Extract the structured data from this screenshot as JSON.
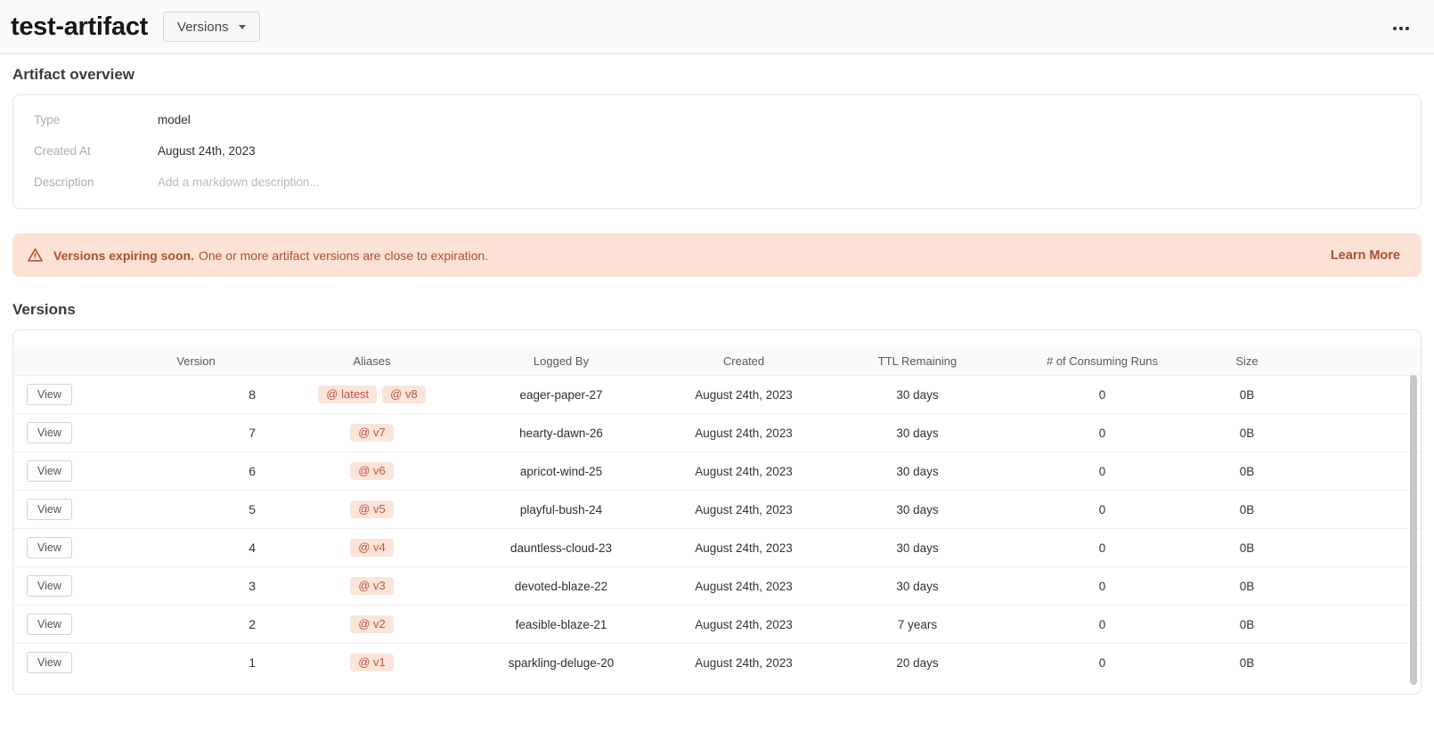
{
  "header": {
    "title": "test-artifact",
    "versions_button": "Versions"
  },
  "overview": {
    "heading": "Artifact overview",
    "type_label": "Type",
    "type_value": "model",
    "created_label": "Created At",
    "created_value": "August 24th, 2023",
    "description_label": "Description",
    "description_placeholder": "Add a markdown description..."
  },
  "banner": {
    "title": "Versions expiring soon.",
    "message": "One or more artifact versions are close to expiration.",
    "action_label": "Learn More"
  },
  "versions_section": {
    "heading": "Versions"
  },
  "table": {
    "columns": [
      "Version",
      "Aliases",
      "Logged By",
      "Created",
      "TTL Remaining",
      "# of Consuming Runs",
      "Size"
    ],
    "view_button_label": "View",
    "alias_prefix": "@",
    "rows": [
      {
        "version": "8",
        "aliases": [
          "latest",
          "v8"
        ],
        "logged_by": "eager-paper-27",
        "created": "August 24th, 2023",
        "ttl_remaining": "30 days",
        "consuming_runs": "0",
        "size": "0B"
      },
      {
        "version": "7",
        "aliases": [
          "v7"
        ],
        "logged_by": "hearty-dawn-26",
        "created": "August 24th, 2023",
        "ttl_remaining": "30 days",
        "consuming_runs": "0",
        "size": "0B"
      },
      {
        "version": "6",
        "aliases": [
          "v6"
        ],
        "logged_by": "apricot-wind-25",
        "created": "August 24th, 2023",
        "ttl_remaining": "30 days",
        "consuming_runs": "0",
        "size": "0B"
      },
      {
        "version": "5",
        "aliases": [
          "v5"
        ],
        "logged_by": "playful-bush-24",
        "created": "August 24th, 2023",
        "ttl_remaining": "30 days",
        "consuming_runs": "0",
        "size": "0B"
      },
      {
        "version": "4",
        "aliases": [
          "v4"
        ],
        "logged_by": "dauntless-cloud-23",
        "created": "August 24th, 2023",
        "ttl_remaining": "30 days",
        "consuming_runs": "0",
        "size": "0B"
      },
      {
        "version": "3",
        "aliases": [
          "v3"
        ],
        "logged_by": "devoted-blaze-22",
        "created": "August 24th, 2023",
        "ttl_remaining": "30 days",
        "consuming_runs": "0",
        "size": "0B"
      },
      {
        "version": "2",
        "aliases": [
          "v2"
        ],
        "logged_by": "feasible-blaze-21",
        "created": "August 24th, 2023",
        "ttl_remaining": "7 years",
        "consuming_runs": "0",
        "size": "0B"
      },
      {
        "version": "1",
        "aliases": [
          "v1"
        ],
        "logged_by": "sparkling-deluge-20",
        "created": "August 24th, 2023",
        "ttl_remaining": "20 days",
        "consuming_runs": "0",
        "size": "0B"
      }
    ]
  },
  "icons": {
    "warning": "warning-triangle",
    "overflow": "ellipsis-horizontal",
    "dropdown": "caret-down"
  },
  "colors": {
    "banner_bg": "#fbe2d5",
    "banner_text": "#ad4e2f",
    "chip_bg": "#fbe4da",
    "chip_text": "#bc5540",
    "table_header_bg": "#fafafa"
  }
}
